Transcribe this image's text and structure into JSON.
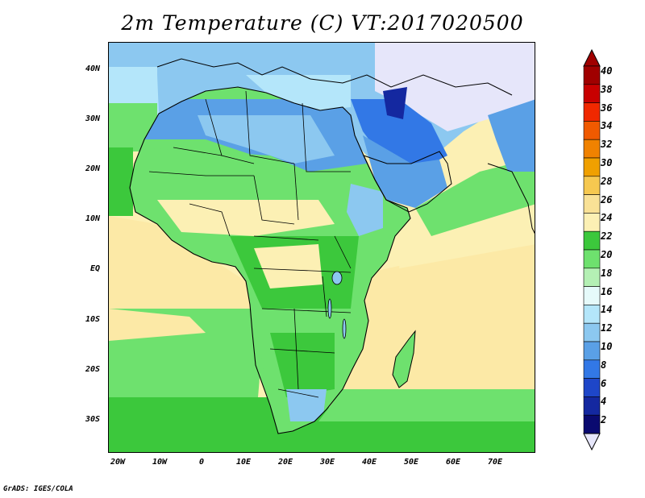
{
  "title": "2m Temperature (C) VT:2017020500",
  "footer": "GrADS: IGES/COLA",
  "lat_labels": [
    "40N",
    "30N",
    "20N",
    "10N",
    "EQ",
    "10S",
    "20S",
    "30S"
  ],
  "lon_labels": [
    "20W",
    "10W",
    "0",
    "10E",
    "20E",
    "30E",
    "40E",
    "50E",
    "60E",
    "70E"
  ],
  "legend_labels": [
    "40",
    "38",
    "36",
    "34",
    "32",
    "30",
    "28",
    "26",
    "24",
    "22",
    "20",
    "18",
    "16",
    "14",
    "12",
    "10",
    "8",
    "6",
    "4",
    "2"
  ],
  "legend_colors": [
    "#a00000",
    "#c80000",
    "#f02800",
    "#f05a00",
    "#f08200",
    "#f0a000",
    "#f6c850",
    "#f9e196",
    "#fcf0b4",
    "#3cc83c",
    "#6ee16e",
    "#b4f0b4",
    "#e6fafa",
    "#b4e6fa",
    "#8cc8f0",
    "#5aa0e6",
    "#3278e6",
    "#1e46c8",
    "#1428a0",
    "#0a0a70"
  ],
  "under_color": "#e6e6fa",
  "over_color": "#a00000",
  "map_colors": {
    "ocean_warm": "#fce9a6",
    "ocean_mid": "#fcf0b4",
    "ocean_green": "#6ee16e",
    "ocean_cool": "#3cc83c",
    "land_green": "#6ee16e",
    "land_dark_green": "#3cc83c",
    "land_yellow": "#fcf0b4",
    "land_blue": "#5aa0e6",
    "land_light_blue": "#8cc8f0",
    "sea_cyan": "#b4e6fa",
    "cold_lavender": "#e6e6fa",
    "cold_navy": "#1428a0",
    "border": "#000000"
  }
}
